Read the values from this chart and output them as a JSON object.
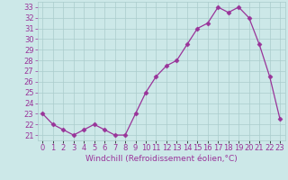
{
  "hours": [
    0,
    1,
    2,
    3,
    4,
    5,
    6,
    7,
    8,
    9,
    10,
    11,
    12,
    13,
    14,
    15,
    16,
    17,
    18,
    19,
    20,
    21,
    22,
    23
  ],
  "values": [
    23,
    22,
    21.5,
    21,
    21.5,
    22,
    21.5,
    21,
    21,
    23,
    25,
    26.5,
    27.5,
    28,
    29.5,
    31,
    31.5,
    33,
    32.5,
    33,
    32,
    29.5,
    26.5,
    22.5
  ],
  "line_color": "#993399",
  "marker": "D",
  "marker_size": 2.5,
  "bg_color": "#cce8e8",
  "grid_color": "#aacccc",
  "ylim_min": 21,
  "ylim_max": 33,
  "yticks": [
    21,
    22,
    23,
    24,
    25,
    26,
    27,
    28,
    29,
    30,
    31,
    32,
    33
  ],
  "xtick_labels": [
    "0",
    "1",
    "2",
    "3",
    "4",
    "5",
    "6",
    "7",
    "8",
    "9",
    "10",
    "11",
    "12",
    "13",
    "14",
    "15",
    "16",
    "17",
    "18",
    "19",
    "20",
    "21",
    "22",
    "23"
  ],
  "xlabel": "Windchill (Refroidissement éolien,°C)",
  "xlabel_color": "#993399",
  "tick_color": "#993399",
  "label_fontsize": 6,
  "xlabel_fontsize": 6.5
}
